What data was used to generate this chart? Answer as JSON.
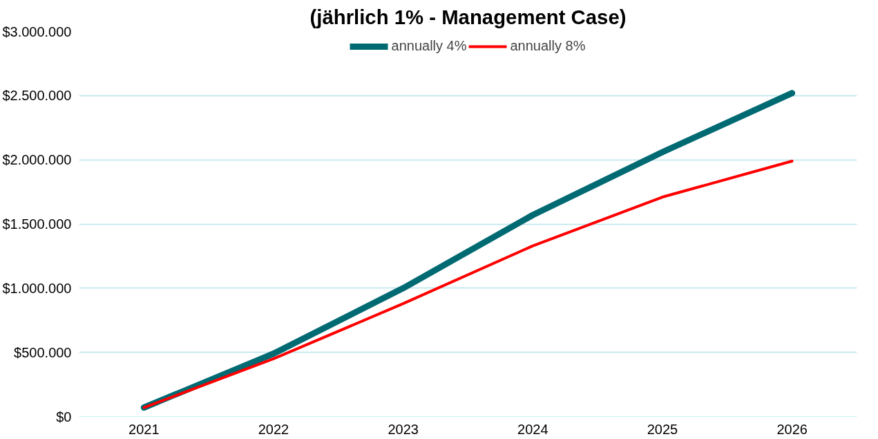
{
  "chart_data": {
    "type": "line",
    "title": "(jährlich 1% - Management Case)",
    "categories": [
      "2021",
      "2022",
      "2023",
      "2024",
      "2025",
      "2026"
    ],
    "series": [
      {
        "name": "annually 4%",
        "color": "#006a73",
        "values": [
          70000,
          490000,
          1000000,
          1570000,
          2060000,
          2520000
        ]
      },
      {
        "name": "annually 8%",
        "color": "#ff0000",
        "values": [
          70000,
          450000,
          880000,
          1330000,
          1710000,
          1990000
        ]
      }
    ],
    "ylim": [
      0,
      3000000
    ],
    "yticks": [
      {
        "value": 0,
        "label": "$0"
      },
      {
        "value": 500000,
        "label": "$500.000"
      },
      {
        "value": 1000000,
        "label": "$1.000.000"
      },
      {
        "value": 1500000,
        "label": "$1.500.000"
      },
      {
        "value": 2000000,
        "label": "$2.000.000"
      },
      {
        "value": 2500000,
        "label": "$2.500.000"
      },
      {
        "value": 3000000,
        "label": "$3.000.000"
      }
    ],
    "grid": "y",
    "legend": "top",
    "marker": "none",
    "line_style": "solid"
  }
}
